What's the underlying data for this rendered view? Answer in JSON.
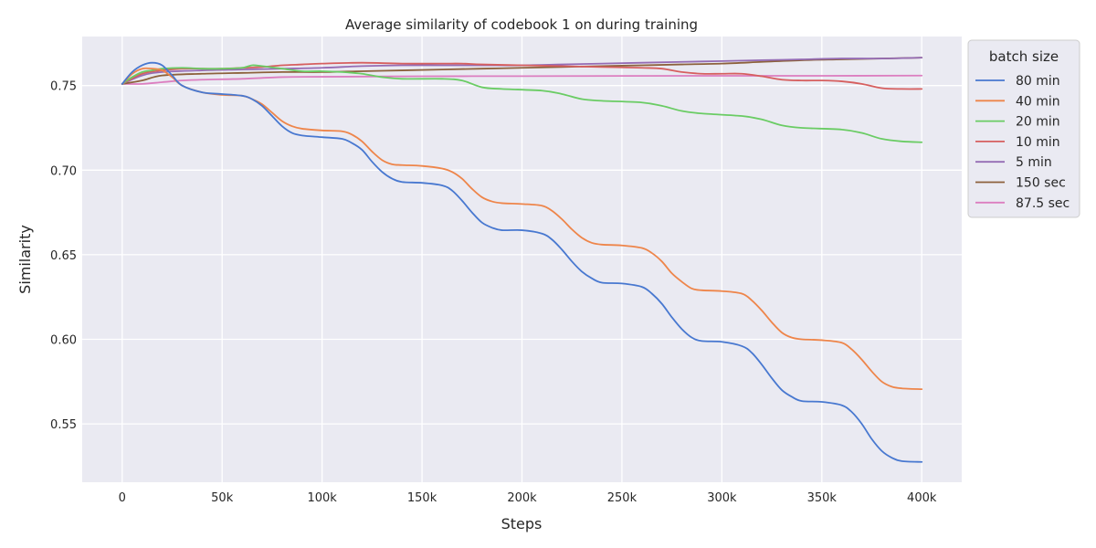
{
  "chart_data": {
    "type": "line",
    "title": "Average similarity of codebook 1 on during training",
    "xlabel": "Steps",
    "ylabel": "Similarity",
    "xlim": [
      -20000,
      420000
    ],
    "ylim": [
      0.5155,
      0.779
    ],
    "x_ticks": [
      0,
      50000,
      100000,
      150000,
      200000,
      250000,
      300000,
      350000,
      400000
    ],
    "x_tick_labels": [
      "0",
      "50k",
      "100k",
      "150k",
      "200k",
      "250k",
      "300k",
      "350k",
      "400k"
    ],
    "y_ticks": [
      0.55,
      0.6,
      0.65,
      0.7,
      0.75
    ],
    "y_tick_labels": [
      "0.55",
      "0.60",
      "0.65",
      "0.70",
      "0.75"
    ],
    "grid": true,
    "background": "#EAEAF2",
    "legend": {
      "title": "batch size",
      "placement": "outside-top-right"
    },
    "series": [
      {
        "name": "80 min",
        "color": "#4878D0",
        "x": [
          0,
          5000,
          10000,
          15000,
          20000,
          25000,
          30000,
          40000,
          50000,
          60000,
          65000,
          70000,
          75000,
          80000,
          85000,
          90000,
          100000,
          110000,
          115000,
          120000,
          125000,
          130000,
          135000,
          140000,
          150000,
          160000,
          165000,
          170000,
          175000,
          180000,
          185000,
          190000,
          200000,
          210000,
          215000,
          220000,
          225000,
          230000,
          235000,
          240000,
          250000,
          260000,
          265000,
          270000,
          275000,
          280000,
          285000,
          290000,
          300000,
          310000,
          315000,
          320000,
          325000,
          330000,
          335000,
          340000,
          350000,
          360000,
          365000,
          370000,
          375000,
          380000,
          385000,
          390000,
          400000
        ],
        "y": [
          0.751,
          0.758,
          0.762,
          0.7635,
          0.762,
          0.756,
          0.75,
          0.746,
          0.745,
          0.744,
          0.742,
          0.738,
          0.732,
          0.726,
          0.722,
          0.7205,
          0.7195,
          0.7185,
          0.716,
          0.712,
          0.705,
          0.699,
          0.695,
          0.693,
          0.6925,
          0.691,
          0.688,
          0.682,
          0.675,
          0.669,
          0.666,
          0.6645,
          0.6645,
          0.6625,
          0.659,
          0.653,
          0.646,
          0.64,
          0.636,
          0.6335,
          0.633,
          0.631,
          0.627,
          0.621,
          0.613,
          0.606,
          0.601,
          0.599,
          0.5985,
          0.596,
          0.592,
          0.585,
          0.577,
          0.57,
          0.566,
          0.5635,
          0.563,
          0.561,
          0.557,
          0.55,
          0.541,
          0.534,
          0.53,
          0.528,
          0.5275
        ]
      },
      {
        "name": "40 min",
        "color": "#EE854A",
        "x": [
          0,
          5000,
          10000,
          15000,
          20000,
          25000,
          30000,
          40000,
          50000,
          60000,
          65000,
          70000,
          75000,
          80000,
          85000,
          90000,
          100000,
          110000,
          115000,
          120000,
          125000,
          130000,
          135000,
          140000,
          150000,
          160000,
          165000,
          170000,
          175000,
          180000,
          185000,
          190000,
          200000,
          210000,
          215000,
          220000,
          225000,
          230000,
          235000,
          240000,
          250000,
          260000,
          265000,
          270000,
          275000,
          280000,
          285000,
          290000,
          300000,
          310000,
          315000,
          320000,
          325000,
          330000,
          335000,
          340000,
          350000,
          360000,
          365000,
          370000,
          375000,
          380000,
          385000,
          390000,
          400000
        ],
        "y": [
          0.751,
          0.757,
          0.76,
          0.76,
          0.759,
          0.755,
          0.75,
          0.746,
          0.7445,
          0.744,
          0.742,
          0.739,
          0.734,
          0.729,
          0.726,
          0.7245,
          0.7235,
          0.723,
          0.721,
          0.717,
          0.711,
          0.706,
          0.7035,
          0.703,
          0.7025,
          0.701,
          0.699,
          0.695,
          0.689,
          0.684,
          0.6815,
          0.6805,
          0.68,
          0.679,
          0.676,
          0.671,
          0.665,
          0.66,
          0.657,
          0.656,
          0.6555,
          0.654,
          0.651,
          0.646,
          0.639,
          0.634,
          0.63,
          0.629,
          0.6285,
          0.627,
          0.623,
          0.617,
          0.61,
          0.604,
          0.601,
          0.6,
          0.5995,
          0.598,
          0.594,
          0.588,
          0.581,
          0.575,
          0.572,
          0.571,
          0.5705
        ]
      },
      {
        "name": "20 min",
        "color": "#6ACC64",
        "x": [
          0,
          5000,
          10000,
          15000,
          20000,
          30000,
          40000,
          50000,
          60000,
          65000,
          70000,
          80000,
          90000,
          100000,
          110000,
          120000,
          130000,
          140000,
          160000,
          170000,
          180000,
          190000,
          210000,
          220000,
          230000,
          240000,
          260000,
          270000,
          280000,
          290000,
          310000,
          320000,
          330000,
          340000,
          360000,
          370000,
          380000,
          390000,
          400000
        ],
        "y": [
          0.751,
          0.755,
          0.758,
          0.759,
          0.76,
          0.7605,
          0.76,
          0.76,
          0.7605,
          0.762,
          0.7615,
          0.76,
          0.7585,
          0.7585,
          0.758,
          0.757,
          0.755,
          0.754,
          0.754,
          0.753,
          0.749,
          0.748,
          0.747,
          0.745,
          0.742,
          0.741,
          0.74,
          0.738,
          0.735,
          0.7335,
          0.732,
          0.73,
          0.7265,
          0.725,
          0.724,
          0.722,
          0.7185,
          0.717,
          0.7165
        ]
      },
      {
        "name": "10 min",
        "color": "#D65F5F",
        "x": [
          0,
          10000,
          20000,
          30000,
          40000,
          50000,
          60000,
          70000,
          80000,
          90000,
          100000,
          120000,
          140000,
          160000,
          170000,
          180000,
          200000,
          220000,
          240000,
          260000,
          270000,
          280000,
          290000,
          300000,
          310000,
          320000,
          330000,
          340000,
          350000,
          360000,
          370000,
          380000,
          390000,
          400000
        ],
        "y": [
          0.751,
          0.757,
          0.759,
          0.76,
          0.76,
          0.76,
          0.7605,
          0.761,
          0.762,
          0.7625,
          0.763,
          0.7635,
          0.763,
          0.763,
          0.763,
          0.7625,
          0.762,
          0.7615,
          0.761,
          0.7605,
          0.76,
          0.758,
          0.757,
          0.757,
          0.757,
          0.7555,
          0.7535,
          0.753,
          0.753,
          0.7525,
          0.751,
          0.7485,
          0.748,
          0.748
        ]
      },
      {
        "name": "5 min",
        "color": "#956CB4",
        "x": [
          0,
          10000,
          20000,
          40000,
          60000,
          80000,
          100000,
          120000,
          140000,
          160000,
          180000,
          200000,
          220000,
          240000,
          260000,
          280000,
          300000,
          320000,
          340000,
          360000,
          380000,
          400000
        ],
        "y": [
          0.751,
          0.756,
          0.758,
          0.759,
          0.7595,
          0.76,
          0.7605,
          0.7615,
          0.762,
          0.762,
          0.762,
          0.762,
          0.7625,
          0.763,
          0.7635,
          0.764,
          0.7645,
          0.765,
          0.7655,
          0.766,
          0.766,
          0.7665
        ]
      },
      {
        "name": "150 sec",
        "color": "#8C613C",
        "x": [
          0,
          10000,
          20000,
          40000,
          60000,
          80000,
          100000,
          120000,
          140000,
          160000,
          180000,
          200000,
          220000,
          240000,
          260000,
          280000,
          300000,
          320000,
          340000,
          360000,
          380000,
          400000
        ],
        "y": [
          0.751,
          0.753,
          0.756,
          0.757,
          0.7575,
          0.758,
          0.758,
          0.7585,
          0.759,
          0.7595,
          0.76,
          0.7605,
          0.761,
          0.7615,
          0.762,
          0.7625,
          0.763,
          0.764,
          0.765,
          0.7655,
          0.766,
          0.7665
        ]
      },
      {
        "name": "87.5 sec",
        "color": "#DC7EC0",
        "x": [
          0,
          10000,
          20000,
          30000,
          40000,
          60000,
          80000,
          100000,
          150000,
          200000,
          250000,
          300000,
          350000,
          400000
        ],
        "y": [
          0.751,
          0.751,
          0.752,
          0.753,
          0.7535,
          0.754,
          0.755,
          0.7552,
          0.7555,
          0.7556,
          0.7557,
          0.7558,
          0.7558,
          0.7559
        ]
      }
    ]
  }
}
